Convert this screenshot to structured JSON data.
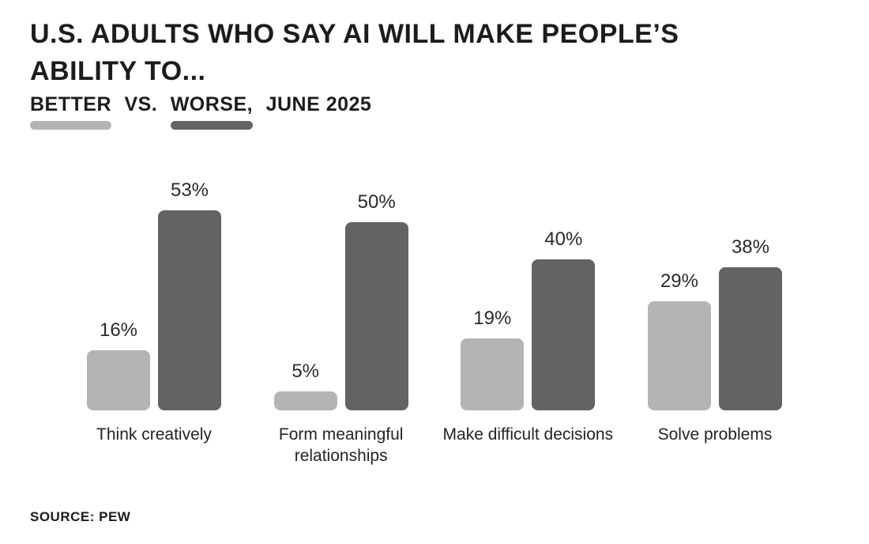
{
  "header": {
    "title_line1": "U.S. ADULTS WHO SAY AI WILL MAKE PEOPLE’S",
    "title_line2": "ABILITY TO...",
    "subtitle": {
      "better": "BETTER",
      "vs": "VS.",
      "worse": "WORSE,",
      "rest": "JUNE 2025"
    }
  },
  "colors": {
    "better": "#b4b4b4",
    "worse": "#636363",
    "text": "#1c1c1c"
  },
  "chart": {
    "groups": [
      {
        "label": "Think creatively",
        "better_label": "16%",
        "worse_label": "53%",
        "better_value": 16,
        "worse_value": 53
      },
      {
        "label": "Form meaningful relationships",
        "better_label": "5%",
        "worse_label": "50%",
        "better_value": 5,
        "worse_value": 50
      },
      {
        "label": "Make difficult decisions",
        "better_label": "19%",
        "worse_label": "40%",
        "better_value": 19,
        "worse_value": 40
      },
      {
        "label": "Solve problems",
        "better_label": "29%",
        "worse_label": "38%",
        "better_value": 29,
        "worse_value": 38
      }
    ]
  },
  "chart_data": {
    "type": "bar",
    "title": "U.S. adults who say AI will make people's ability to...",
    "subtitle": "Better vs. worse, June 2025",
    "categories": [
      "Think creatively",
      "Form meaningful relationships",
      "Make difficult decisions",
      "Solve problems"
    ],
    "series": [
      {
        "name": "Better",
        "color": "#b4b4b4",
        "values": [
          16,
          5,
          19,
          29
        ]
      },
      {
        "name": "Worse",
        "color": "#636363",
        "values": [
          53,
          50,
          40,
          38
        ]
      }
    ],
    "value_suffix": "%",
    "ylim": [
      0,
      55
    ],
    "grid": false,
    "legend_position": "under-subtitle",
    "source": "SOURCE: PEW"
  },
  "footer": {
    "source": "SOURCE: PEW"
  }
}
